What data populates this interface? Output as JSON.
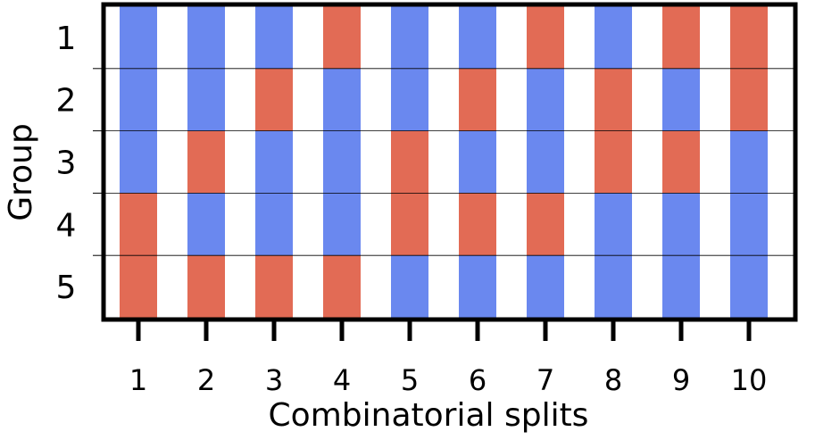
{
  "chart_data": {
    "type": "heatmap",
    "xlabel": "Combinatorial splits",
    "ylabel": "Group",
    "x_ticks": [
      "1",
      "2",
      "3",
      "4",
      "5",
      "6",
      "7",
      "8",
      "9",
      "10"
    ],
    "y_ticks": [
      "1",
      "2",
      "3",
      "4",
      "5"
    ],
    "colors": {
      "blue": "#6a88ef",
      "red": "#e26b55",
      "frame": "#000000",
      "background": "#ffffff"
    },
    "cells": [
      [
        "blue",
        "blue",
        "blue",
        "red",
        "red"
      ],
      [
        "blue",
        "blue",
        "red",
        "blue",
        "red"
      ],
      [
        "blue",
        "red",
        "blue",
        "blue",
        "red"
      ],
      [
        "red",
        "blue",
        "blue",
        "blue",
        "red"
      ],
      [
        "blue",
        "blue",
        "red",
        "red",
        "blue"
      ],
      [
        "blue",
        "red",
        "blue",
        "red",
        "blue"
      ],
      [
        "red",
        "blue",
        "blue",
        "red",
        "blue"
      ],
      [
        "blue",
        "red",
        "red",
        "blue",
        "blue"
      ],
      [
        "red",
        "blue",
        "red",
        "blue",
        "blue"
      ],
      [
        "red",
        "red",
        "blue",
        "blue",
        "blue"
      ]
    ]
  }
}
